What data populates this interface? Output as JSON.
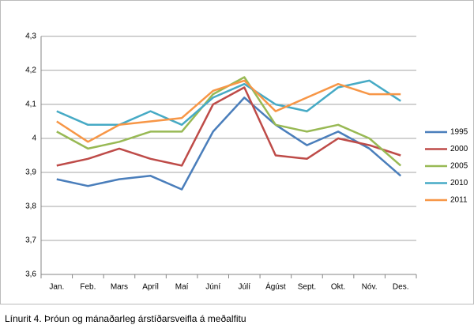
{
  "chart_data": {
    "type": "line",
    "caption": "Línurit 4. Þróun og  mánaðarleg árstíðarsveifla á meðalfitu",
    "categories": [
      "Jan.",
      "Feb.",
      "Mars",
      "Apríl",
      "Maí",
      "Júní",
      "Júlí",
      "Ágúst",
      "Sept.",
      "Okt.",
      "Nóv.",
      "Des."
    ],
    "series": [
      {
        "name": "1995",
        "color": "#4a7ebb",
        "values": [
          3.88,
          3.86,
          3.88,
          3.89,
          3.85,
          4.02,
          4.12,
          4.04,
          3.98,
          4.02,
          3.97,
          3.89
        ]
      },
      {
        "name": "2000",
        "color": "#be4b48",
        "values": [
          3.92,
          3.94,
          3.97,
          3.94,
          3.92,
          4.1,
          4.15,
          3.95,
          3.94,
          4.0,
          3.98,
          3.95
        ]
      },
      {
        "name": "2005",
        "color": "#98b954",
        "values": [
          4.02,
          3.97,
          3.99,
          4.02,
          4.02,
          4.13,
          4.18,
          4.04,
          4.02,
          4.04,
          4.0,
          3.92
        ]
      },
      {
        "name": "2010",
        "color": "#46aac5",
        "values": [
          4.08,
          4.04,
          4.04,
          4.08,
          4.04,
          4.12,
          4.16,
          4.1,
          4.08,
          4.15,
          4.17,
          4.11
        ]
      },
      {
        "name": "2011",
        "color": "#f79646",
        "values": [
          4.05,
          3.99,
          4.04,
          4.05,
          4.06,
          4.14,
          4.17,
          4.08,
          4.12,
          4.16,
          4.13,
          4.13
        ]
      }
    ],
    "ylim": [
      3.6,
      4.3
    ],
    "yticks": [
      {
        "value": 3.6,
        "label": "3,6"
      },
      {
        "value": 3.7,
        "label": "3,7"
      },
      {
        "value": 3.8,
        "label": "3,8"
      },
      {
        "value": 3.9,
        "label": "3,9"
      },
      4,
      {
        "value": 4.1,
        "label": "4,1"
      },
      {
        "value": 4.2,
        "label": "4,2"
      },
      {
        "value": 4.3,
        "label": "4,3"
      }
    ],
    "grid": true,
    "legend": "right"
  }
}
